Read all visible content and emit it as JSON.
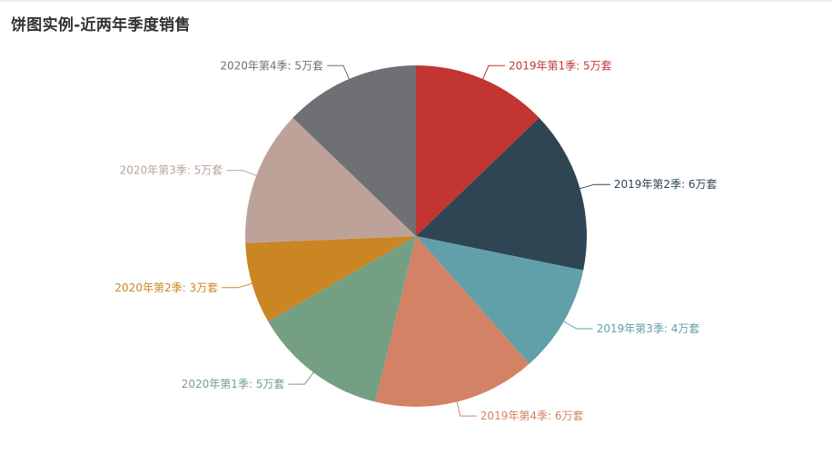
{
  "chart_data": {
    "type": "pie",
    "title": "饼图实例-近两年季度销售",
    "unit": "万套",
    "categories": [
      "2019年第1季",
      "2019年第2季",
      "2019年第3季",
      "2019年第4季",
      "2020年第1季",
      "2020年第2季",
      "2020年第3季",
      "2020年第4季"
    ],
    "values": [
      5,
      6,
      4,
      6,
      5,
      3,
      5,
      5
    ],
    "colors": [
      "#c23531",
      "#2f4554",
      "#61a0a8",
      "#d48265",
      "#749f83",
      "#ca8622",
      "#bda29a",
      "#6e7074"
    ],
    "labels": [
      "2019年第1季: 5万套",
      "2019年第2季: 6万套",
      "2019年第3季: 4万套",
      "2019年第4季: 6万套",
      "2020年第1季: 5万套",
      "2020年第2季: 3万套",
      "2020年第3季: 5万套",
      "2020年第4季: 5万套"
    ]
  }
}
